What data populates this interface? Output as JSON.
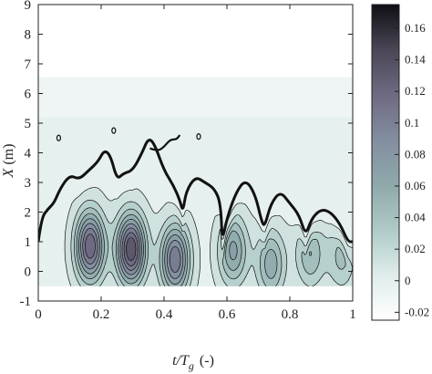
{
  "chart_data": {
    "type": "contour",
    "title": "",
    "xlabel": "t/T",
    "xlabel_sub": "g",
    "xlabel_unit": "(-)",
    "ylabel": "X",
    "ylabel_unit": "(m)",
    "xlim": [
      0,
      1
    ],
    "ylim": [
      -1,
      9
    ],
    "x_ticks": [
      "0",
      "0.2",
      "0.4",
      "0.6",
      "0.8",
      "1"
    ],
    "y_ticks": [
      "-1",
      "0",
      "1",
      "2",
      "3",
      "4",
      "5",
      "6",
      "7",
      "8",
      "9"
    ],
    "data_region": {
      "x": [
        0,
        1
      ],
      "y": [
        -0.5,
        6.55
      ]
    },
    "colorbar": {
      "range": [
        -0.025,
        0.175
      ],
      "ticks": [
        "-0.02",
        "0",
        "0.02",
        "0.04",
        "0.06",
        "0.08",
        "0.1",
        "0.12",
        "0.14",
        "0.16"
      ],
      "colors": [
        "#ffffff",
        "#dfeceb",
        "#aecbc7",
        "#8fa9ab",
        "#838ea0",
        "#6e6a82",
        "#4b4656",
        "#0f0f14"
      ]
    },
    "contour_levels": [
      -0.01,
      0.005,
      0.02,
      0.035,
      0.05,
      0.065,
      0.08,
      0.095,
      0.11,
      0.125
    ],
    "zero_contour": 0,
    "peaks": [
      {
        "t": 0.165,
        "X": 0.85,
        "value": 0.125
      },
      {
        "t": 0.295,
        "X": 0.75,
        "value": 0.14
      },
      {
        "t": 0.435,
        "X": 0.4,
        "value": 0.11
      },
      {
        "t": 0.62,
        "X": 0.7,
        "value": 0.07
      },
      {
        "t": 0.74,
        "X": 0.25,
        "value": 0.06
      },
      {
        "t": 0.865,
        "X": 0.6,
        "value": 0.05
      },
      {
        "t": 0.965,
        "X": 0.5,
        "value": 0.04
      }
    ],
    "front_line": [
      [
        0.0,
        1.0
      ],
      [
        0.01,
        1.8
      ],
      [
        0.03,
        2.1
      ],
      [
        0.05,
        2.3
      ],
      [
        0.07,
        2.8
      ],
      [
        0.1,
        3.25
      ],
      [
        0.13,
        3.1
      ],
      [
        0.16,
        3.4
      ],
      [
        0.19,
        3.7
      ],
      [
        0.21,
        4.1
      ],
      [
        0.23,
        3.9
      ],
      [
        0.25,
        3.1
      ],
      [
        0.27,
        3.3
      ],
      [
        0.3,
        3.4
      ],
      [
        0.33,
        4.0
      ],
      [
        0.35,
        4.5
      ],
      [
        0.37,
        4.3
      ],
      [
        0.4,
        3.4
      ],
      [
        0.43,
        2.9
      ],
      [
        0.45,
        2.4
      ],
      [
        0.46,
        2.0
      ],
      [
        0.47,
        2.7
      ],
      [
        0.5,
        3.2
      ],
      [
        0.53,
        3.0
      ],
      [
        0.56,
        2.8
      ],
      [
        0.58,
        2.3
      ],
      [
        0.585,
        1.0
      ],
      [
        0.6,
        1.8
      ],
      [
        0.63,
        2.7
      ],
      [
        0.66,
        3.1
      ],
      [
        0.69,
        2.6
      ],
      [
        0.71,
        1.7
      ],
      [
        0.72,
        1.5
      ],
      [
        0.74,
        2.3
      ],
      [
        0.77,
        2.7
      ],
      [
        0.8,
        2.3
      ],
      [
        0.83,
        1.9
      ],
      [
        0.85,
        1.2
      ],
      [
        0.87,
        1.8
      ],
      [
        0.9,
        2.1
      ],
      [
        0.93,
        2.0
      ],
      [
        0.96,
        1.6
      ],
      [
        0.985,
        1.0
      ],
      [
        1.0,
        1.0
      ]
    ],
    "splash_line": [
      [
        0.355,
        4.15
      ],
      [
        0.38,
        4.05
      ],
      [
        0.4,
        4.2
      ],
      [
        0.42,
        4.45
      ],
      [
        0.44,
        4.45
      ],
      [
        0.45,
        4.6
      ]
    ],
    "isolated_contours": [
      {
        "t": 0.065,
        "X": 4.5
      },
      {
        "t": 0.24,
        "X": 4.75
      },
      {
        "t": 0.51,
        "X": 4.55
      }
    ]
  }
}
